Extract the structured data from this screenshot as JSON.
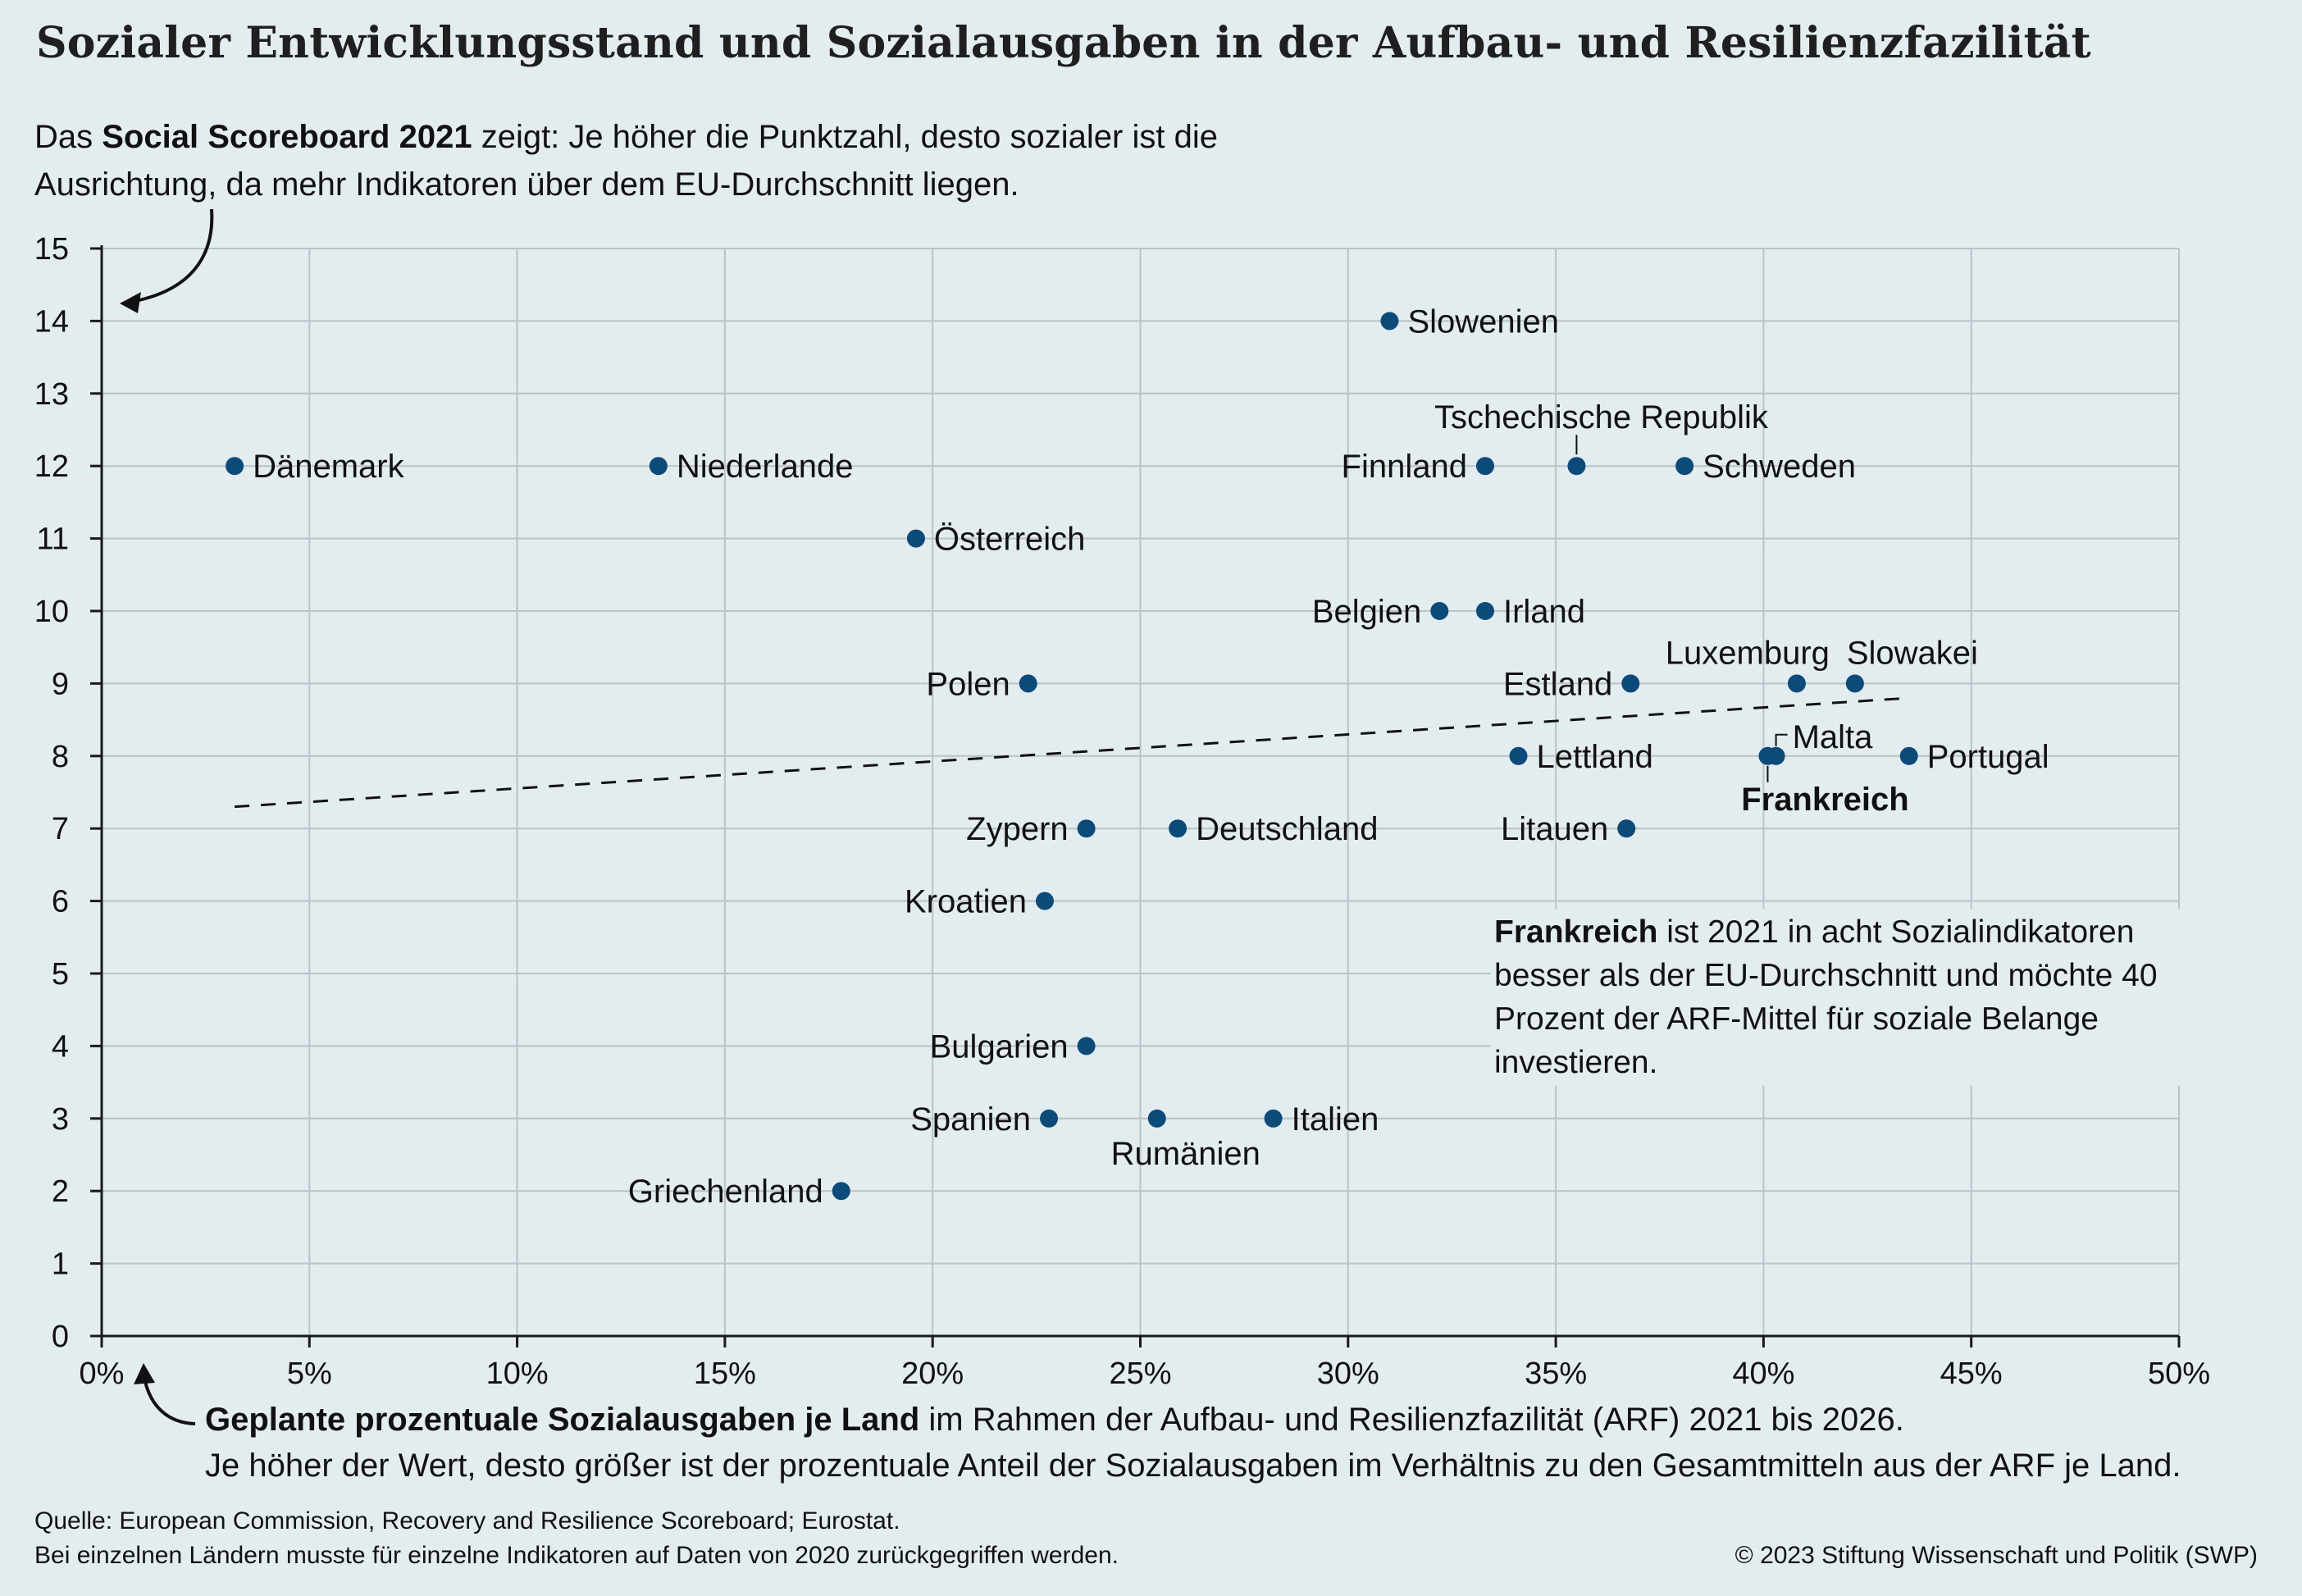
{
  "title": "Sozialer Entwicklungsstand und Sozialausgaben in der Aufbau- und Resilienzfazilität",
  "intro": {
    "prefix": "Das ",
    "bold": "Social Scoreboard 2021",
    "suffix": " zeigt: Je höher die Punktzahl, desto sozialer ist die Ausrichtung, da mehr Indikatoren über dem EU-Durchschnitt liegen."
  },
  "x_caption": {
    "bold": "Geplante prozentuale Sozialausgaben je Land",
    "line1_rest": " im Rahmen der Aufbau- und Resilienzfazilität (ARF) 2021 bis 2026.",
    "line2": "Je höher der Wert, desto größer ist der prozentuale Anteil der Sozialausgaben im Verhältnis zu den Gesamtmitteln aus der ARF je Land."
  },
  "annotation": {
    "bold": "Frankreich",
    "text": " ist 2021 in acht Sozialindikatoren besser als der EU-Durchschnitt und möchte 40 Prozent der ARF-Mittel für soziale Belange investieren."
  },
  "source": {
    "line1": "Quelle:  European Commission, Recovery and Resilience Scoreboard; Eurostat.",
    "line2": "Bei einzelnen Ländern musste für einzelne Indikatoren auf Daten von 2020 zurückgegriffen werden."
  },
  "copyright": "© 2023 Stiftung Wissenschaft und Politik (SWP)",
  "colors": {
    "background": "#e3ecef",
    "point": "#0b4a79",
    "grid": "#b9c3c8",
    "axis": "#1a1a1a"
  },
  "chart_data": {
    "type": "scatter",
    "xlim": [
      0,
      50
    ],
    "ylim": [
      0,
      15
    ],
    "x_ticks": [
      "0%",
      "5%",
      "10%",
      "15%",
      "20%",
      "25%",
      "30%",
      "35%",
      "40%",
      "45%",
      "50%"
    ],
    "y_ticks": [
      "0",
      "1",
      "2",
      "3",
      "4",
      "5",
      "6",
      "7",
      "8",
      "9",
      "10",
      "11",
      "12",
      "13",
      "14",
      "15"
    ],
    "grid": true,
    "trendline": {
      "style": "dashed",
      "x": [
        3.2,
        43.5
      ],
      "y": [
        7.3,
        8.8
      ]
    },
    "points": [
      {
        "label": "Dänemark",
        "x": 3.2,
        "y": 12,
        "label_pos": "right"
      },
      {
        "label": "Niederlande",
        "x": 13.4,
        "y": 12,
        "label_pos": "right"
      },
      {
        "label": "Österreich",
        "x": 19.6,
        "y": 11,
        "label_pos": "right"
      },
      {
        "label": "Polen",
        "x": 22.3,
        "y": 9,
        "label_pos": "left"
      },
      {
        "label": "Zypern",
        "x": 23.7,
        "y": 7,
        "label_pos": "left"
      },
      {
        "label": "Kroatien",
        "x": 22.7,
        "y": 6,
        "label_pos": "left"
      },
      {
        "label": "Bulgarien",
        "x": 23.7,
        "y": 4,
        "label_pos": "left"
      },
      {
        "label": "Spanien",
        "x": 22.8,
        "y": 3,
        "label_pos": "left"
      },
      {
        "label": "Griechenland",
        "x": 17.8,
        "y": 2,
        "label_pos": "left"
      },
      {
        "label": "Deutschland",
        "x": 25.9,
        "y": 7,
        "label_pos": "right"
      },
      {
        "label": "Rumänien",
        "x": 25.4,
        "y": 3,
        "label_pos": "below"
      },
      {
        "label": "Italien",
        "x": 28.2,
        "y": 3,
        "label_pos": "right"
      },
      {
        "label": "Slowenien",
        "x": 31.0,
        "y": 14,
        "label_pos": "right"
      },
      {
        "label": "Finnland",
        "x": 33.3,
        "y": 12,
        "label_pos": "left"
      },
      {
        "label": "Tschechische Republik",
        "x": 35.5,
        "y": 12,
        "label_pos": "above"
      },
      {
        "label": "Schweden",
        "x": 38.1,
        "y": 12,
        "label_pos": "right"
      },
      {
        "label": "Belgien",
        "x": 32.2,
        "y": 10,
        "label_pos": "left"
      },
      {
        "label": "Irland",
        "x": 33.3,
        "y": 10,
        "label_pos": "right"
      },
      {
        "label": "Estland",
        "x": 36.8,
        "y": 9,
        "label_pos": "left"
      },
      {
        "label": "Luxemburg",
        "x": 40.8,
        "y": 9,
        "label_pos": "above-left"
      },
      {
        "label": "Slowakei",
        "x": 42.2,
        "y": 9,
        "label_pos": "above-right"
      },
      {
        "label": "Lettland",
        "x": 34.1,
        "y": 8,
        "label_pos": "right"
      },
      {
        "label": "Malta",
        "x": 40.3,
        "y": 8,
        "label_pos": "above-right-leader"
      },
      {
        "label": "Frankreich",
        "x": 40.1,
        "y": 8,
        "label_pos": "below-leader",
        "bold": true
      },
      {
        "label": "Portugal",
        "x": 43.5,
        "y": 8,
        "label_pos": "right"
      },
      {
        "label": "Litauen",
        "x": 36.7,
        "y": 7,
        "label_pos": "left"
      }
    ]
  }
}
